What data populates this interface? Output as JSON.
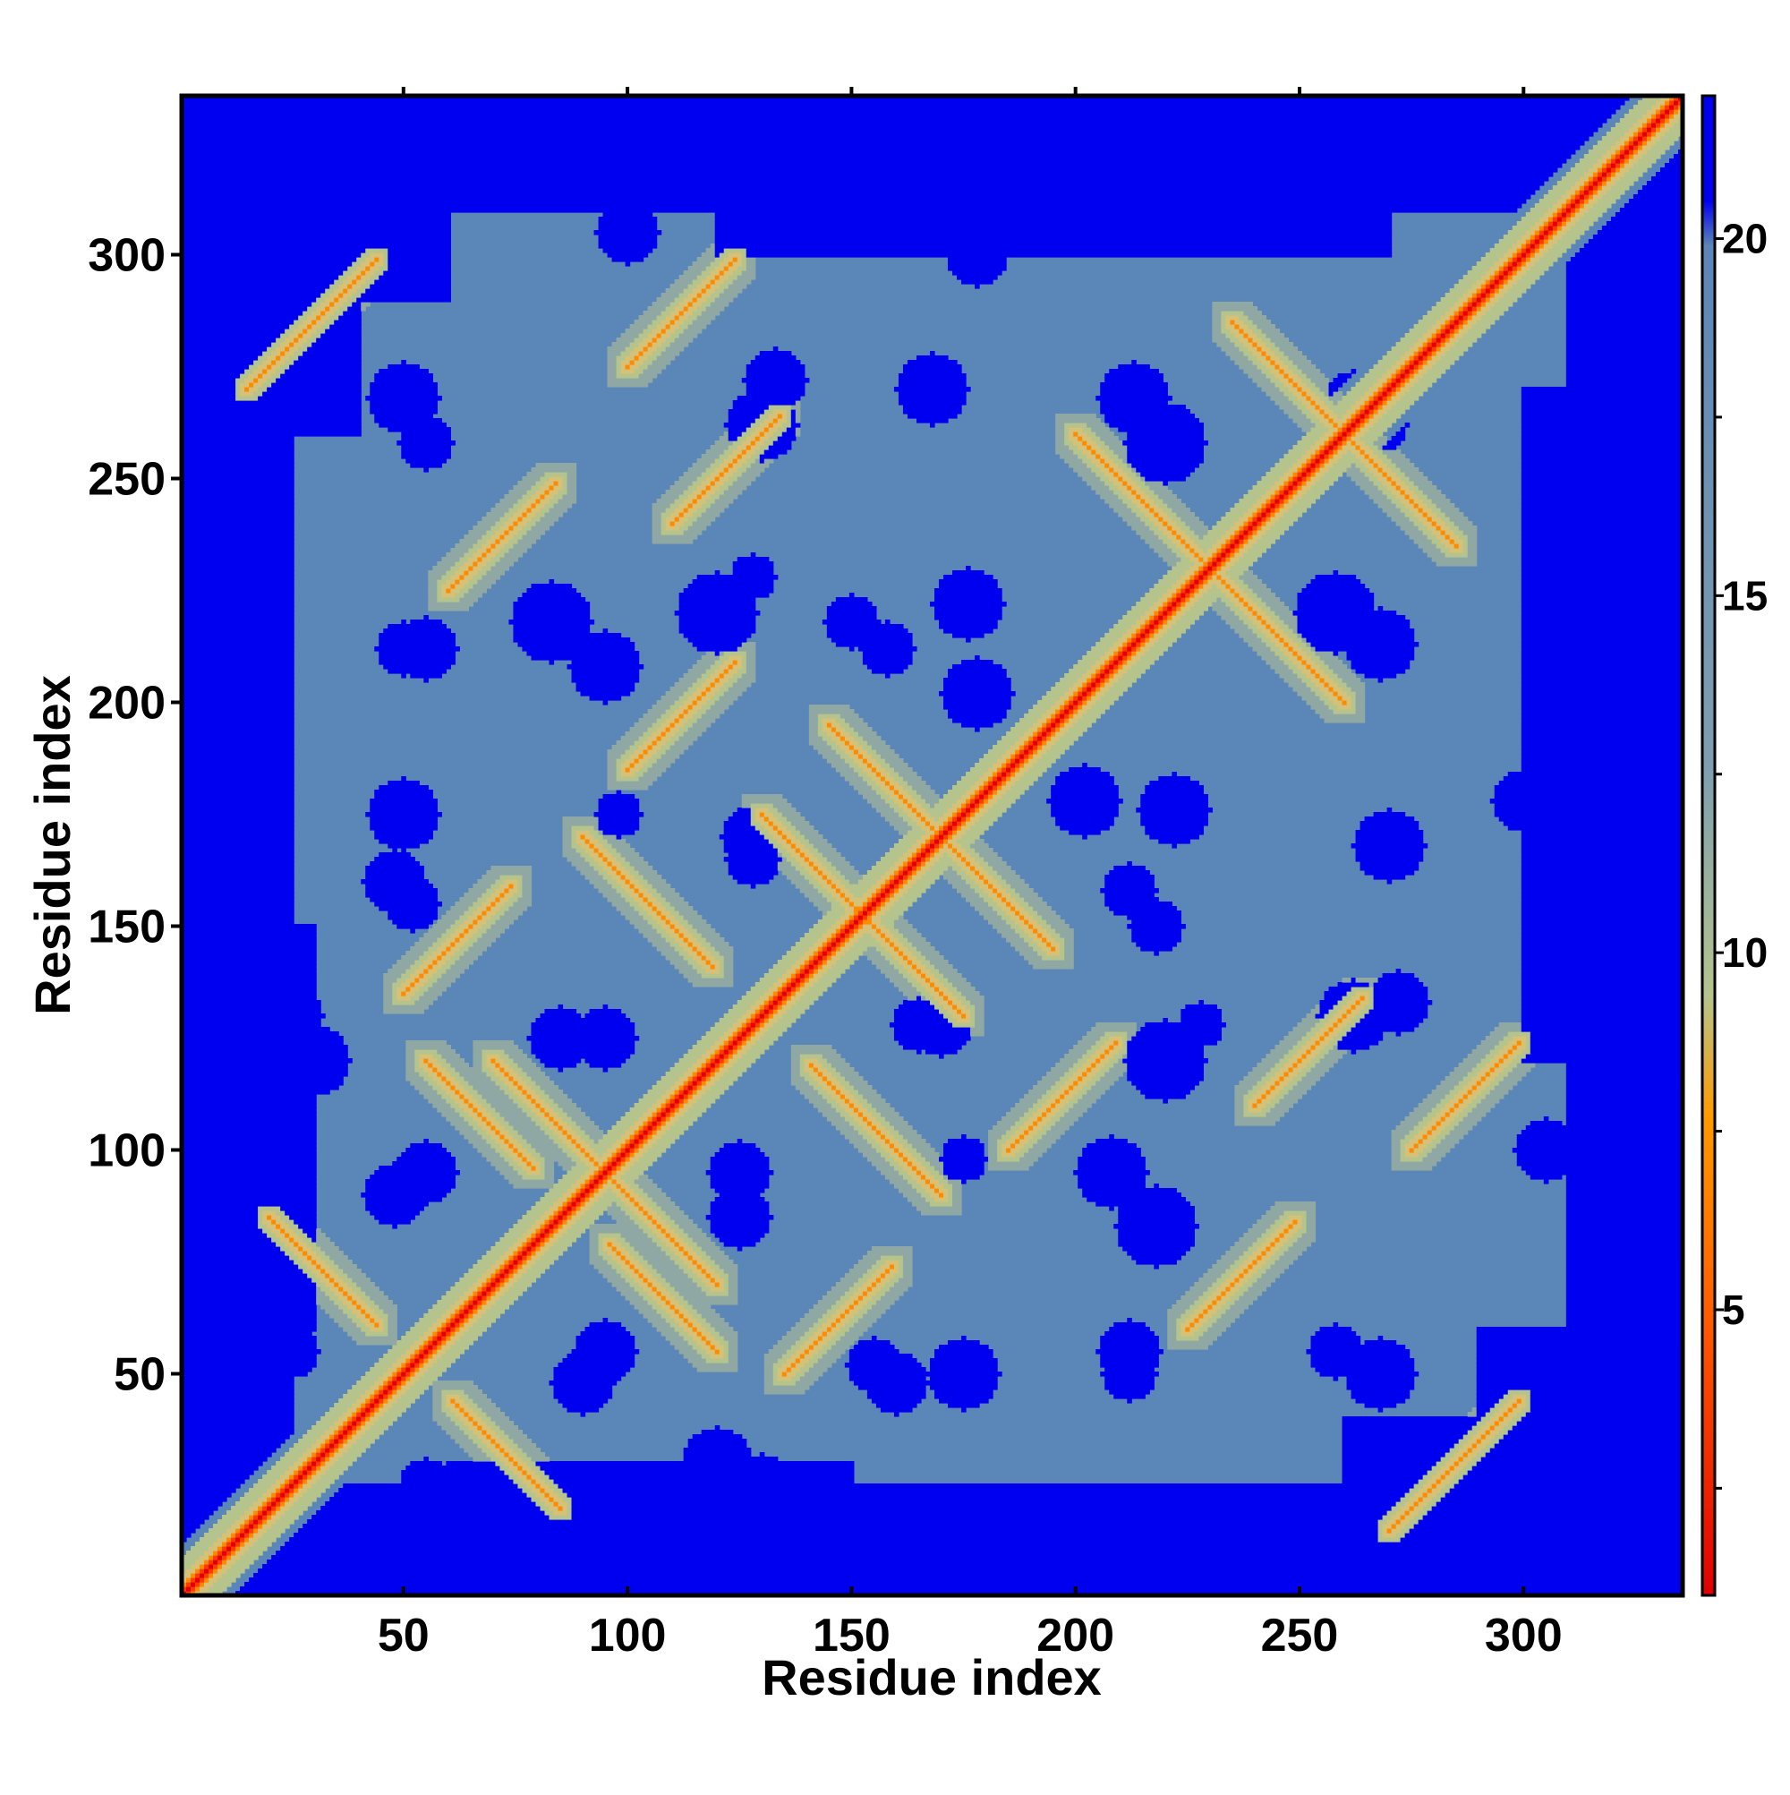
{
  "chart_data": {
    "type": "heatmap",
    "title": "",
    "xlabel": "Residue index",
    "ylabel": "Residue index",
    "n_residues": 335,
    "xlim": [
      1,
      335
    ],
    "ylim": [
      1,
      335
    ],
    "xticks": [
      50,
      100,
      150,
      200,
      250,
      300
    ],
    "yticks": [
      50,
      100,
      150,
      200,
      250,
      300
    ],
    "colorbar": {
      "range": [
        1,
        22
      ],
      "ticks": [
        5,
        10,
        15,
        20
      ],
      "colors": {
        "contact": "#e00000",
        "close": "#ff8a00",
        "medium": "#b5c48c",
        "far": "#5b86b8",
        "very_far": "#0000f0"
      }
    },
    "values_description_free": true,
    "diagonal": {
      "from": 1,
      "to": 335,
      "value": 1
    },
    "features": [
      {
        "kind": "antiparallel",
        "a_start": 20,
        "b_start": 85,
        "length": 25,
        "value": 6
      },
      {
        "kind": "antiparallel",
        "a_start": 55,
        "b_start": 120,
        "length": 25,
        "value": 6
      },
      {
        "kind": "antiparallel",
        "a_start": 70,
        "b_start": 120,
        "length": 25,
        "value": 6
      },
      {
        "kind": "antiparallel",
        "a_start": 90,
        "b_start": 170,
        "length": 30,
        "value": 6
      },
      {
        "kind": "antiparallel",
        "a_start": 130,
        "b_start": 175,
        "length": 25,
        "value": 6
      },
      {
        "kind": "antiparallel",
        "a_start": 145,
        "b_start": 195,
        "length": 25,
        "value": 6
      },
      {
        "kind": "antiparallel",
        "a_start": 200,
        "b_start": 260,
        "length": 30,
        "value": 6
      },
      {
        "kind": "antiparallel",
        "a_start": 235,
        "b_start": 285,
        "length": 25,
        "value": 6
      },
      {
        "kind": "parallel",
        "a_start": 135,
        "b_start": 50,
        "length": 25,
        "value": 6
      },
      {
        "kind": "parallel",
        "a_start": 185,
        "b_start": 100,
        "length": 25,
        "value": 6
      },
      {
        "kind": "parallel",
        "a_start": 225,
        "b_start": 60,
        "length": 25,
        "value": 6
      },
      {
        "kind": "parallel",
        "a_start": 240,
        "b_start": 110,
        "length": 25,
        "value": 6
      },
      {
        "kind": "parallel",
        "a_start": 270,
        "b_start": 15,
        "length": 30,
        "value": 6
      },
      {
        "kind": "parallel",
        "a_start": 275,
        "b_start": 100,
        "length": 25,
        "value": 6
      }
    ],
    "far_regions": [
      {
        "x": [
          1,
          25
        ],
        "y": [
          1,
          335
        ]
      },
      {
        "x": [
          310,
          335
        ],
        "y": [
          1,
          335
        ]
      },
      {
        "x": [
          1,
          335
        ],
        "y": [
          320,
          335
        ]
      },
      {
        "x": [
          1,
          335
        ],
        "y": [
          1,
          15
        ]
      },
      {
        "x": [
          20,
          60
        ],
        "y": [
          290,
          335
        ]
      },
      {
        "x": [
          120,
          190
        ],
        "y": [
          300,
          335
        ]
      },
      {
        "x": [
          180,
          240
        ],
        "y": [
          300,
          335
        ]
      },
      {
        "x": [
          260,
          320
        ],
        "y": [
          1,
          40
        ]
      },
      {
        "x": [
          300,
          335
        ],
        "y": [
          200,
          270
        ]
      },
      {
        "x": [
          1,
          30
        ],
        "y": [
          60,
          150
        ]
      }
    ],
    "far_blobs": [
      {
        "cx": 50,
        "cy": 268,
        "r": 8
      },
      {
        "cx": 55,
        "cy": 212,
        "r": 7
      },
      {
        "cx": 48,
        "cy": 160,
        "r": 7
      },
      {
        "cx": 25,
        "cy": 130,
        "r": 7
      },
      {
        "cx": 55,
        "cy": 95,
        "r": 7
      },
      {
        "cx": 25,
        "cy": 55,
        "r": 6
      },
      {
        "cx": 90,
        "cy": 48,
        "r": 7
      },
      {
        "cx": 120,
        "cy": 30,
        "r": 8
      },
      {
        "cx": 125,
        "cy": 95,
        "r": 7
      },
      {
        "cx": 85,
        "cy": 125,
        "r": 7
      },
      {
        "cx": 128,
        "cy": 170,
        "r": 7
      },
      {
        "cx": 120,
        "cy": 220,
        "r": 9
      },
      {
        "cx": 133,
        "cy": 272,
        "r": 7
      },
      {
        "cx": 83,
        "cy": 218,
        "r": 9
      },
      {
        "cx": 176,
        "cy": 222,
        "r": 8
      },
      {
        "cx": 168,
        "cy": 270,
        "r": 8
      },
      {
        "cx": 150,
        "cy": 218,
        "r": 6
      },
      {
        "cx": 165,
        "cy": 128,
        "r": 6
      },
      {
        "cx": 175,
        "cy": 50,
        "r": 8
      },
      {
        "cx": 155,
        "cy": 52,
        "r": 6
      },
      {
        "cx": 208,
        "cy": 95,
        "r": 8
      },
      {
        "cx": 212,
        "cy": 50,
        "r": 6
      },
      {
        "cx": 213,
        "cy": 268,
        "r": 8
      },
      {
        "cx": 202,
        "cy": 178,
        "r": 8
      },
      {
        "cx": 258,
        "cy": 220,
        "r": 9
      },
      {
        "cx": 262,
        "cy": 130,
        "r": 8
      },
      {
        "cx": 258,
        "cy": 55,
        "r": 6
      },
      {
        "cx": 262,
        "cy": 268,
        "r": 6
      },
      {
        "cx": 300,
        "cy": 178,
        "r": 7
      },
      {
        "cx": 305,
        "cy": 100,
        "r": 7
      },
      {
        "cx": 212,
        "cy": 158,
        "r": 6
      },
      {
        "cx": 228,
        "cy": 128,
        "r": 5
      },
      {
        "cx": 98,
        "cy": 175,
        "r": 5
      }
    ]
  }
}
